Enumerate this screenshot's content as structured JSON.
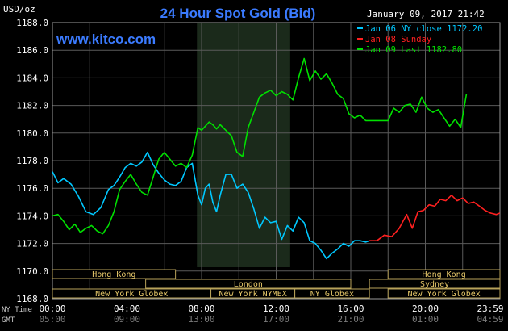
{
  "header": {
    "title": "24 Hour Spot Gold (Bid)",
    "units": "USD/oz",
    "datetime": "January 09, 2017 21:42",
    "site": "www.kitco.com"
  },
  "chart_data": {
    "type": "line",
    "title": "24 Hour Spot Gold (Bid)",
    "ylabel": "USD/oz",
    "xlabel": "",
    "ylim": [
      1168.0,
      1188.0
    ],
    "yticks": [
      1168.0,
      1170.0,
      1172.0,
      1174.0,
      1176.0,
      1178.0,
      1180.0,
      1182.0,
      1184.0,
      1186.0,
      1188.0
    ],
    "xlim": [
      0,
      24
    ],
    "grid": true,
    "legend_position": "top-right",
    "x_axis_rows": [
      {
        "label": "NY Time",
        "ticks": [
          "00:00",
          "04:00",
          "08:00",
          "12:00",
          "16:00",
          "20:00",
          "23:59"
        ]
      },
      {
        "label": "GMT",
        "ticks": [
          "05:00",
          "09:00",
          "13:00",
          "17:00",
          "21:00",
          "01:00",
          "04:59"
        ]
      }
    ],
    "highlight_band": [
      7.75,
      12.75
    ],
    "sessions": [
      {
        "label": "Hong Kong",
        "row": 0,
        "start": 0.0,
        "end": 6.6
      },
      {
        "label": "London",
        "row": 1,
        "start": 5.0,
        "end": 16.0
      },
      {
        "label": "New York Globex",
        "row": 2,
        "start": 0.0,
        "end": 8.5
      },
      {
        "label": "New York NYMEX",
        "row": 2,
        "start": 8.5,
        "end": 13.0
      },
      {
        "label": "NY Globex",
        "row": 2,
        "start": 13.0,
        "end": 17.0
      },
      {
        "label": "Hong Kong",
        "row": 0,
        "start": 18.0,
        "end": 24.0
      },
      {
        "label": "Sydney",
        "row": 1,
        "start": 17.0,
        "end": 24.0
      },
      {
        "label": "New York Globex",
        "row": 2,
        "start": 18.0,
        "end": 24.0
      }
    ],
    "series": [
      {
        "name": "Jan 06 NY close 1172.20",
        "color": "#00c8ff",
        "x": [
          0.0,
          0.3,
          0.6,
          1.0,
          1.4,
          1.8,
          2.2,
          2.6,
          3.0,
          3.3,
          3.6,
          3.9,
          4.2,
          4.5,
          4.8,
          5.1,
          5.4,
          5.7,
          6.0,
          6.3,
          6.6,
          6.9,
          7.2,
          7.5,
          7.8,
          8.0,
          8.2,
          8.4,
          8.6,
          8.8,
          9.0,
          9.3,
          9.6,
          9.9,
          10.2,
          10.5,
          10.8,
          11.1,
          11.4,
          11.7,
          12.0,
          12.3,
          12.6,
          12.9,
          13.2,
          13.5,
          13.8,
          14.1,
          14.4,
          14.7,
          15.0,
          15.3,
          15.6,
          15.9,
          16.2,
          16.5,
          16.8,
          17.0
        ],
        "y": [
          1177.2,
          1176.4,
          1176.7,
          1176.3,
          1175.4,
          1174.3,
          1174.1,
          1174.6,
          1175.9,
          1176.2,
          1176.8,
          1177.5,
          1177.8,
          1177.6,
          1177.9,
          1178.6,
          1177.7,
          1177.1,
          1176.6,
          1176.3,
          1176.2,
          1176.5,
          1177.5,
          1177.8,
          1175.5,
          1174.8,
          1176.0,
          1176.3,
          1175.0,
          1174.3,
          1175.5,
          1177.0,
          1177.0,
          1176.0,
          1176.3,
          1175.7,
          1174.5,
          1173.1,
          1173.9,
          1173.5,
          1173.6,
          1172.3,
          1173.3,
          1172.9,
          1173.9,
          1173.5,
          1172.2,
          1172.0,
          1171.5,
          1170.9,
          1171.3,
          1171.6,
          1172.0,
          1171.8,
          1172.2,
          1172.2,
          1172.1,
          1172.2
        ]
      },
      {
        "name": "Jan 08 Sunday",
        "color": "#ff2020",
        "x": [
          17.0,
          17.4,
          17.8,
          18.2,
          18.6,
          19.0,
          19.3,
          19.6,
          19.9,
          20.2,
          20.5,
          20.8,
          21.1,
          21.4,
          21.7,
          22.0,
          22.3,
          22.6,
          22.9,
          23.2,
          23.5,
          23.8,
          23.99
        ],
        "y": [
          1172.2,
          1172.2,
          1172.6,
          1172.5,
          1173.1,
          1174.1,
          1173.1,
          1174.3,
          1174.4,
          1174.8,
          1174.7,
          1175.2,
          1175.1,
          1175.5,
          1175.1,
          1175.3,
          1174.9,
          1175.0,
          1174.7,
          1174.4,
          1174.2,
          1174.1,
          1174.2
        ]
      },
      {
        "name": "Jan 09 Last 1182.80",
        "color": "#00e000",
        "x": [
          0.0,
          0.3,
          0.6,
          0.9,
          1.2,
          1.5,
          1.8,
          2.1,
          2.4,
          2.7,
          3.0,
          3.3,
          3.6,
          3.9,
          4.2,
          4.5,
          4.8,
          5.1,
          5.4,
          5.7,
          6.0,
          6.3,
          6.6,
          6.9,
          7.2,
          7.5,
          7.8,
          8.0,
          8.2,
          8.4,
          8.6,
          8.8,
          9.0,
          9.3,
          9.6,
          9.9,
          10.2,
          10.5,
          10.8,
          11.1,
          11.4,
          11.7,
          12.0,
          12.3,
          12.6,
          12.9,
          13.2,
          13.5,
          13.8,
          14.1,
          14.4,
          14.7,
          15.0,
          15.3,
          15.6,
          15.9,
          16.2,
          16.5,
          16.8,
          17.2,
          17.6,
          18.0,
          18.3,
          18.6,
          18.9,
          19.2,
          19.5,
          19.8,
          20.1,
          20.4,
          20.7,
          21.0,
          21.3,
          21.6,
          21.9,
          22.2
        ],
        "y": [
          1174.0,
          1174.1,
          1173.6,
          1173.0,
          1173.4,
          1172.8,
          1173.1,
          1173.3,
          1172.9,
          1172.7,
          1173.3,
          1174.3,
          1175.9,
          1176.5,
          1177.0,
          1176.3,
          1175.7,
          1175.5,
          1176.8,
          1178.1,
          1178.6,
          1178.1,
          1177.6,
          1177.8,
          1177.5,
          1178.4,
          1180.4,
          1180.2,
          1180.5,
          1180.8,
          1180.6,
          1180.3,
          1180.6,
          1180.2,
          1179.8,
          1178.6,
          1178.3,
          1180.4,
          1181.5,
          1182.6,
          1182.9,
          1183.1,
          1182.7,
          1183.0,
          1182.8,
          1182.4,
          1184.0,
          1185.4,
          1183.8,
          1184.5,
          1183.9,
          1184.3,
          1183.6,
          1182.8,
          1182.5,
          1181.4,
          1181.1,
          1181.3,
          1180.9,
          1180.9,
          1180.9,
          1180.9,
          1181.8,
          1181.5,
          1182.0,
          1182.1,
          1181.5,
          1182.6,
          1181.8,
          1181.5,
          1181.7,
          1181.1,
          1180.5,
          1181.0,
          1180.4,
          1182.8
        ]
      }
    ]
  }
}
